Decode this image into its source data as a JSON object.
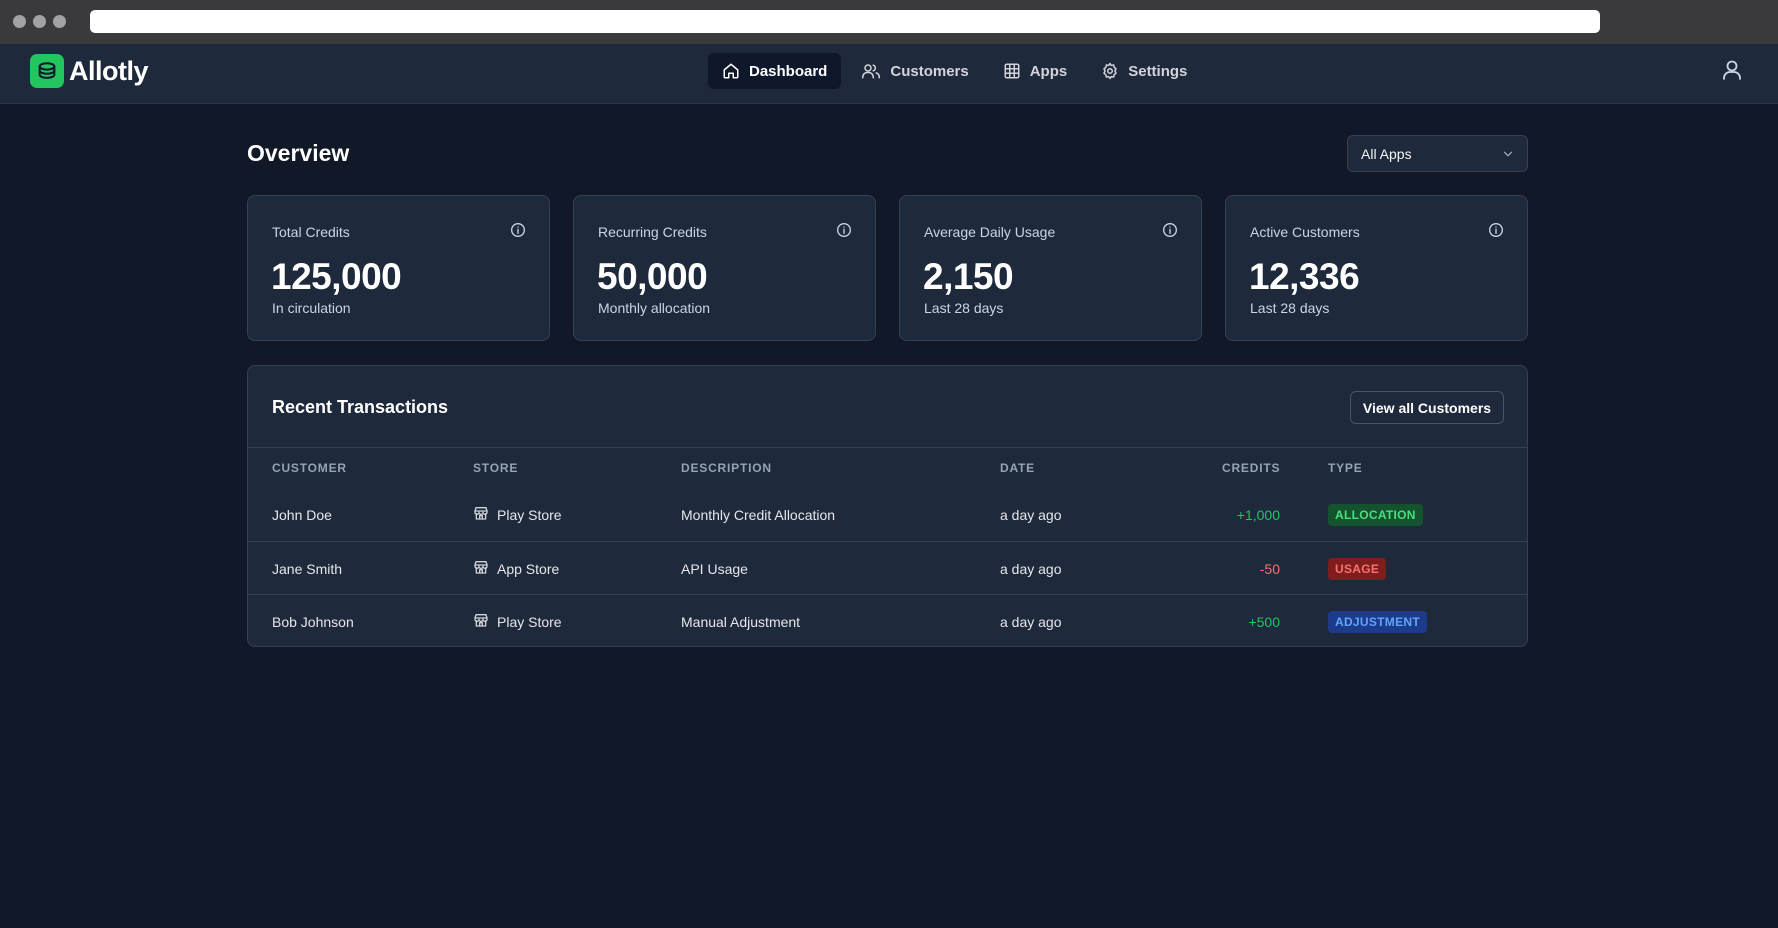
{
  "app": {
    "name": "Allotly",
    "nav": [
      {
        "label": "Dashboard",
        "icon": "home-icon",
        "active": true
      },
      {
        "label": "Customers",
        "icon": "users-icon",
        "active": false
      },
      {
        "label": "Apps",
        "icon": "grid-icon",
        "active": false
      },
      {
        "label": "Settings",
        "icon": "gear-icon",
        "active": false
      }
    ]
  },
  "overview": {
    "title": "Overview",
    "app_filter": {
      "selected": "All Apps"
    }
  },
  "stats": [
    {
      "label": "Total Credits",
      "value": "125,000",
      "sub": "In circulation"
    },
    {
      "label": "Recurring Credits",
      "value": "50,000",
      "sub": "Monthly allocation"
    },
    {
      "label": "Average Daily Usage",
      "value": "2,150",
      "sub": "Last 28 days"
    },
    {
      "label": "Active Customers",
      "value": "12,336",
      "sub": "Last 28 days"
    }
  ],
  "transactions": {
    "title": "Recent Transactions",
    "view_all_label": "View all Customers",
    "columns": [
      "CUSTOMER",
      "STORE",
      "DESCRIPTION",
      "DATE",
      "CREDITS",
      "TYPE"
    ],
    "rows": [
      {
        "customer": "John Doe",
        "store": "Play Store",
        "description": "Monthly Credit Allocation",
        "date": "a day ago",
        "credits": "+1,000",
        "type": "ALLOCATION"
      },
      {
        "customer": "Jane Smith",
        "store": "App Store",
        "description": "API Usage",
        "date": "a day ago",
        "credits": "-50",
        "type": "USAGE"
      },
      {
        "customer": "Bob Johnson",
        "store": "Play Store",
        "description": "Manual Adjustment",
        "date": "a day ago",
        "credits": "+500",
        "type": "ADJUSTMENT"
      }
    ]
  },
  "colors": {
    "background": "#111827",
    "surface": "#1e293b",
    "brand": "#22c55e",
    "positive": "#22c55e",
    "negative": "#f87171"
  }
}
